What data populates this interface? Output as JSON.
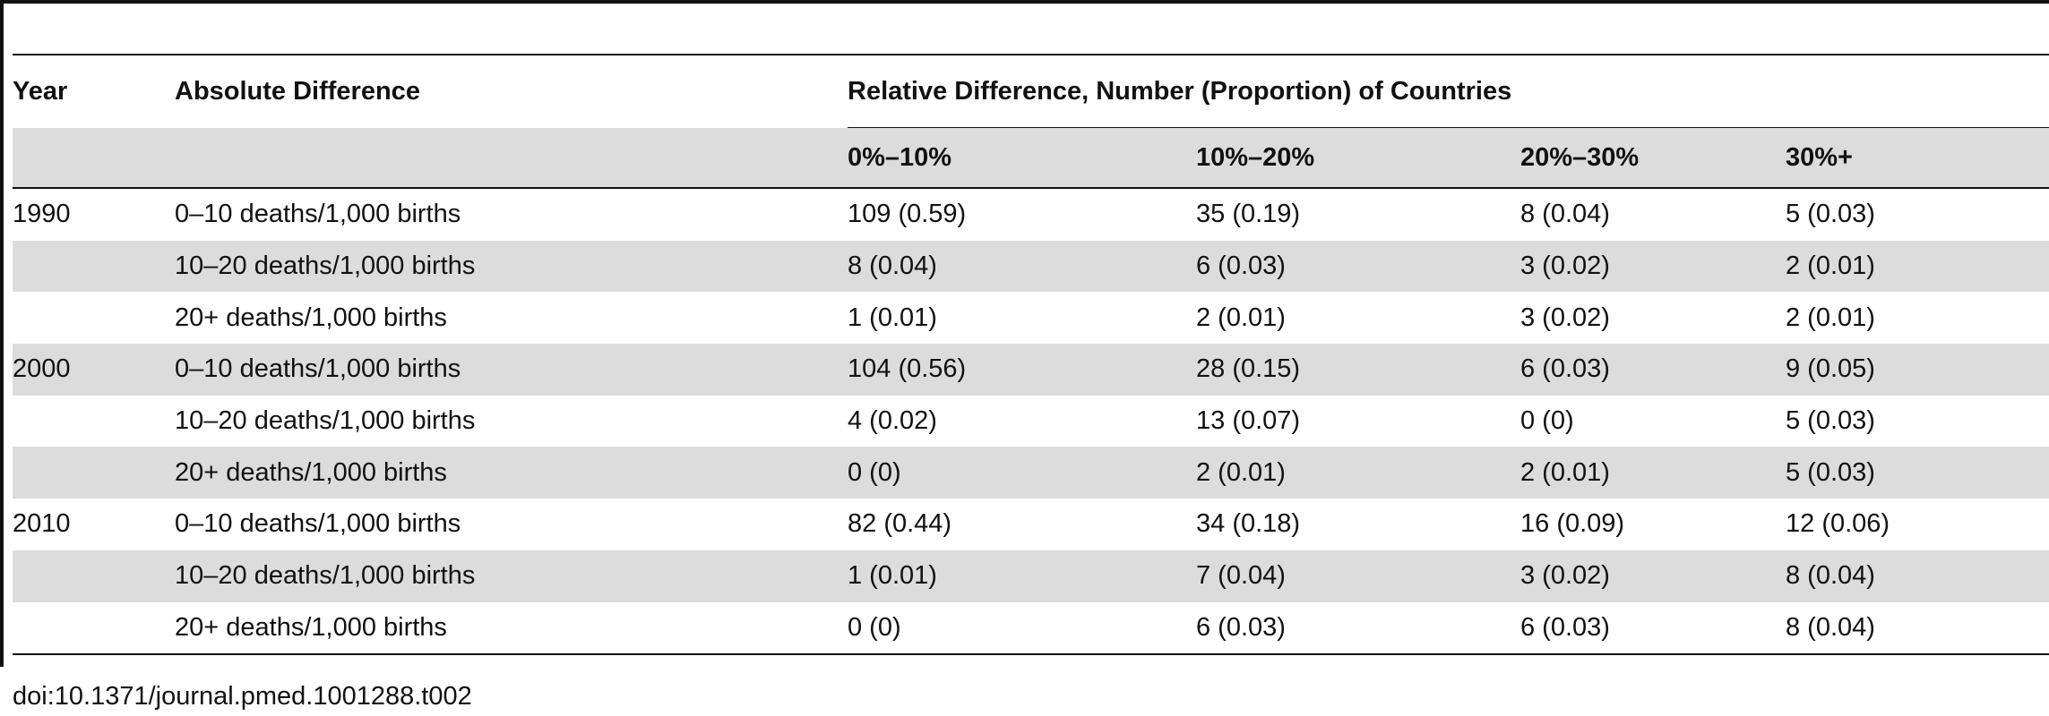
{
  "table": {
    "header": {
      "year": "Year",
      "absolute": "Absolute Difference",
      "relative": "Relative Difference, Number (Proportion) of Countries",
      "ranges": [
        "0%–10%",
        "10%–20%",
        "20%–30%",
        "30%+"
      ]
    },
    "rows": [
      {
        "year": "1990",
        "abs": "0–10 deaths/1,000 births",
        "cells": [
          "109 (0.59)",
          "35 (0.19)",
          "8 (0.04)",
          "5 (0.03)"
        ]
      },
      {
        "year": "",
        "abs": "10–20 deaths/1,000 births",
        "cells": [
          "8 (0.04)",
          "6 (0.03)",
          "3 (0.02)",
          "2 (0.01)"
        ]
      },
      {
        "year": "",
        "abs": "20+ deaths/1,000 births",
        "cells": [
          "1 (0.01)",
          "2 (0.01)",
          "3 (0.02)",
          "2 (0.01)"
        ]
      },
      {
        "year": "2000",
        "abs": "0–10 deaths/1,000 births",
        "cells": [
          "104 (0.56)",
          "28 (0.15)",
          "6 (0.03)",
          "9 (0.05)"
        ]
      },
      {
        "year": "",
        "abs": "10–20 deaths/1,000 births",
        "cells": [
          "4 (0.02)",
          "13 (0.07)",
          "0 (0)",
          "5 (0.03)"
        ]
      },
      {
        "year": "",
        "abs": "20+ deaths/1,000 births",
        "cells": [
          "0 (0)",
          "2 (0.01)",
          "2 (0.01)",
          "5 (0.03)"
        ]
      },
      {
        "year": "2010",
        "abs": "0–10 deaths/1,000 births",
        "cells": [
          "82 (0.44)",
          "34 (0.18)",
          "16 (0.09)",
          "12 (0.06)"
        ]
      },
      {
        "year": "",
        "abs": "10–20 deaths/1,000 births",
        "cells": [
          "1 (0.01)",
          "7 (0.04)",
          "3 (0.02)",
          "8 (0.04)"
        ]
      },
      {
        "year": "",
        "abs": "20+ deaths/1,000 births",
        "cells": [
          "0 (0)",
          "6 (0.03)",
          "6 (0.03)",
          "8 (0.04)"
        ]
      }
    ]
  },
  "footer": {
    "doi": "doi:10.1371/journal.pmed.1001288.t002"
  }
}
